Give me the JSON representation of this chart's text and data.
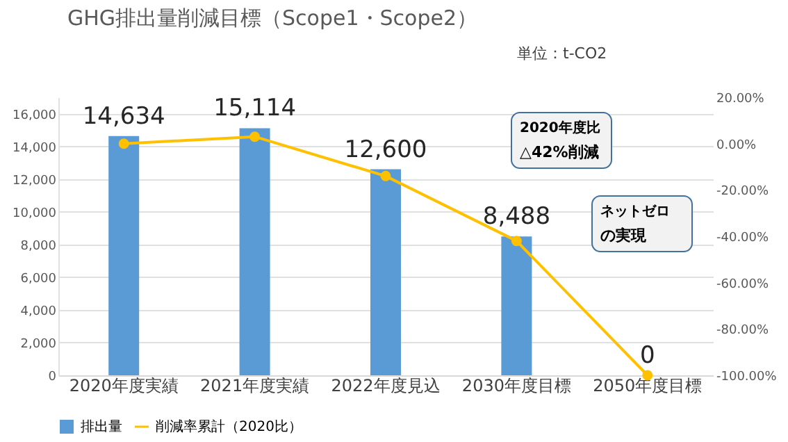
{
  "chart_data": {
    "type": "bar",
    "title": "GHG排出量削減目標（Scope1・Scope2）",
    "subtitle": "単位：t-CO2",
    "categories": [
      "2020年度実績",
      "2021年度実績",
      "2022年度見込",
      "2030年度目標",
      "2050年度目標"
    ],
    "series": [
      {
        "name": "排出量",
        "color": "#5b9bd5",
        "values": [
          14634,
          15114,
          12600,
          8488,
          0
        ],
        "value_labels": [
          "14,634",
          "15,114",
          "12,600",
          "8,488",
          "0"
        ]
      },
      {
        "name": "削減率累計（2020比）",
        "type": "line",
        "axis": "y2",
        "color": "#ffc000",
        "values": [
          0,
          3,
          -14,
          -42,
          -100
        ],
        "marker": "circle"
      }
    ],
    "ylim": [
      0,
      17000
    ],
    "yticks": [
      {
        "value": 0,
        "label": "0"
      },
      {
        "value": 2000,
        "label": "2,000"
      },
      {
        "value": 4000,
        "label": "4,000"
      },
      {
        "value": 6000,
        "label": "6,000"
      },
      {
        "value": 8000,
        "label": "8,000"
      },
      {
        "value": 10000,
        "label": "10,000"
      },
      {
        "value": 12000,
        "label": "12,000"
      },
      {
        "value": 14000,
        "label": "14,000"
      },
      {
        "value": 16000,
        "label": "16,000"
      }
    ],
    "y2lim": [
      -100,
      20
    ],
    "y2ticks": [
      {
        "value": -100,
        "label": "-100.00%"
      },
      {
        "value": -80,
        "label": "-80.00%"
      },
      {
        "value": -60,
        "label": "-60.00%"
      },
      {
        "value": -40,
        "label": "-40.00%"
      },
      {
        "value": -20,
        "label": "-20.00%"
      },
      {
        "value": 0,
        "label": "0.00%"
      },
      {
        "value": 20,
        "label": "20.00%"
      }
    ],
    "grid": "y",
    "legend": "bottom",
    "annotations": [
      "2020年度比",
      "△42%削減",
      "ネットゼロ",
      "の実現"
    ]
  }
}
